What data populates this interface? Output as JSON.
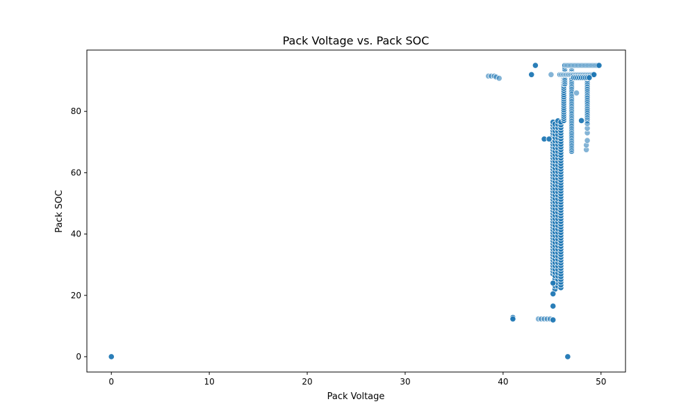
{
  "chart_data": {
    "type": "scatter",
    "title": "Pack Voltage vs. Pack SOC",
    "xlabel": "Pack Voltage",
    "ylabel": "Pack SOC",
    "xlim": [
      -2.5,
      52.5
    ],
    "ylim": [
      -5,
      100
    ],
    "xticks": [
      0,
      10,
      20,
      30,
      40,
      50
    ],
    "yticks": [
      0,
      20,
      40,
      60,
      80
    ],
    "grid": false,
    "marker_color": "#1f77b4",
    "marker_edge_color": "#ffffff",
    "points": [
      {
        "x": 0,
        "y": 0
      },
      {
        "x": 46.6,
        "y": 0
      },
      {
        "x": 38.5,
        "y": 91.5,
        "opacity": 0.55
      },
      {
        "x": 38.8,
        "y": 91.5,
        "opacity": 0.55
      },
      {
        "x": 39.1,
        "y": 91.5,
        "opacity": 0.55
      },
      {
        "x": 39.3,
        "y": 91.2,
        "opacity": 0.55
      },
      {
        "x": 39.6,
        "y": 90.8,
        "opacity": 0.55
      },
      {
        "x": 42.9,
        "y": 92.0
      },
      {
        "x": 43.3,
        "y": 95.0
      },
      {
        "x": 44.9,
        "y": 92.0,
        "opacity": 0.55
      },
      {
        "x": 44.2,
        "y": 71.0
      },
      {
        "x": 44.7,
        "y": 71.0
      },
      {
        "x": 47.5,
        "y": 86.0,
        "opacity": 0.55
      },
      {
        "x": 48.0,
        "y": 77.0
      },
      {
        "x": 41.0,
        "y": 12.8
      },
      {
        "x": 41.0,
        "y": 12.3
      },
      {
        "x": 43.6,
        "y": 12.3,
        "opacity": 0.55
      },
      {
        "x": 43.9,
        "y": 12.3,
        "opacity": 0.55
      },
      {
        "x": 44.2,
        "y": 12.3,
        "opacity": 0.55
      },
      {
        "x": 44.5,
        "y": 12.3,
        "opacity": 0.55
      },
      {
        "x": 44.8,
        "y": 12.3,
        "opacity": 0.55
      },
      {
        "x": 45.1,
        "y": 12.0
      },
      {
        "x": 45.1,
        "y": 16.5
      },
      {
        "x": 45.1,
        "y": 20.5
      },
      {
        "x": 45.1,
        "y": 24.0
      },
      {
        "x": 48.5,
        "y": 67.5,
        "opacity": 0.55
      },
      {
        "x": 48.5,
        "y": 69.0,
        "opacity": 0.55
      },
      {
        "x": 48.6,
        "y": 70.5,
        "opacity": 0.55
      },
      {
        "x": 48.6,
        "y": 73.0,
        "opacity": 0.55
      },
      {
        "x": 48.6,
        "y": 74.5,
        "opacity": 0.55
      },
      {
        "x": 48.6,
        "y": 76.0,
        "opacity": 0.55
      }
    ],
    "columns": [
      {
        "x": 45.1,
        "y_from": 27,
        "y_to": 77,
        "step": 0.9
      },
      {
        "x": 45.3,
        "y_from": 22,
        "y_to": 76,
        "step": 1.1
      },
      {
        "x": 45.6,
        "y_from": 23,
        "y_to": 77,
        "step": 1.1
      },
      {
        "x": 45.9,
        "y_from": 22.5,
        "y_to": 77,
        "step": 0.9
      },
      {
        "x": 46.2,
        "y_from": 77,
        "y_to": 92,
        "step": 0.7
      },
      {
        "x": 46.3,
        "y_from": 89,
        "y_to": 95,
        "step": 0.6
      },
      {
        "x": 47.0,
        "y_from": 67,
        "y_to": 95,
        "step": 0.55
      },
      {
        "x": 48.6,
        "y_from": 77,
        "y_to": 92,
        "step": 0.6
      }
    ],
    "bands": [
      {
        "y": 92.0,
        "x_from": 45.8,
        "x_to": 49.3,
        "step": 0.12
      },
      {
        "y": 95.0,
        "x_from": 46.3,
        "x_to": 49.9,
        "step": 0.14
      },
      {
        "y": 91.0,
        "x_from": 47.2,
        "x_to": 48.8,
        "step": 0.2
      }
    ]
  }
}
